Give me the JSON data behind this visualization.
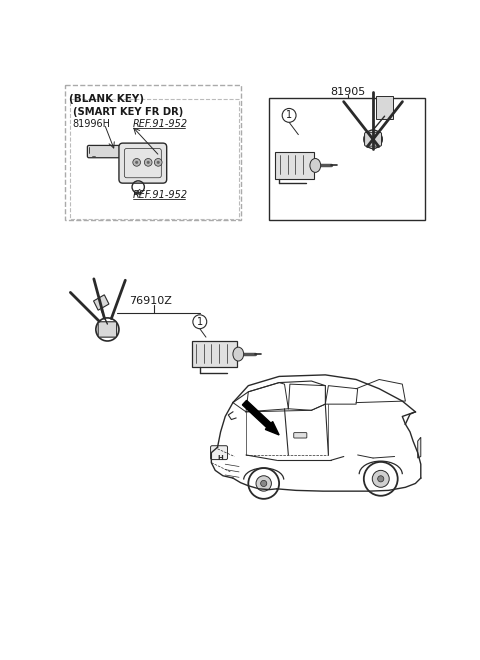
{
  "bg_color": "#ffffff",
  "line_color": "#2a2a2a",
  "text_color": "#1a1a1a",
  "gray_color": "#888888",
  "part_81905": "81905",
  "part_76910Z": "76910Z",
  "part_81996H": "81996H",
  "ref_952": "REF.91-952",
  "blank_key": "(BLANK KEY)",
  "smart_key_fr_dr": "(SMART KEY FR DR)",
  "callout": "1"
}
